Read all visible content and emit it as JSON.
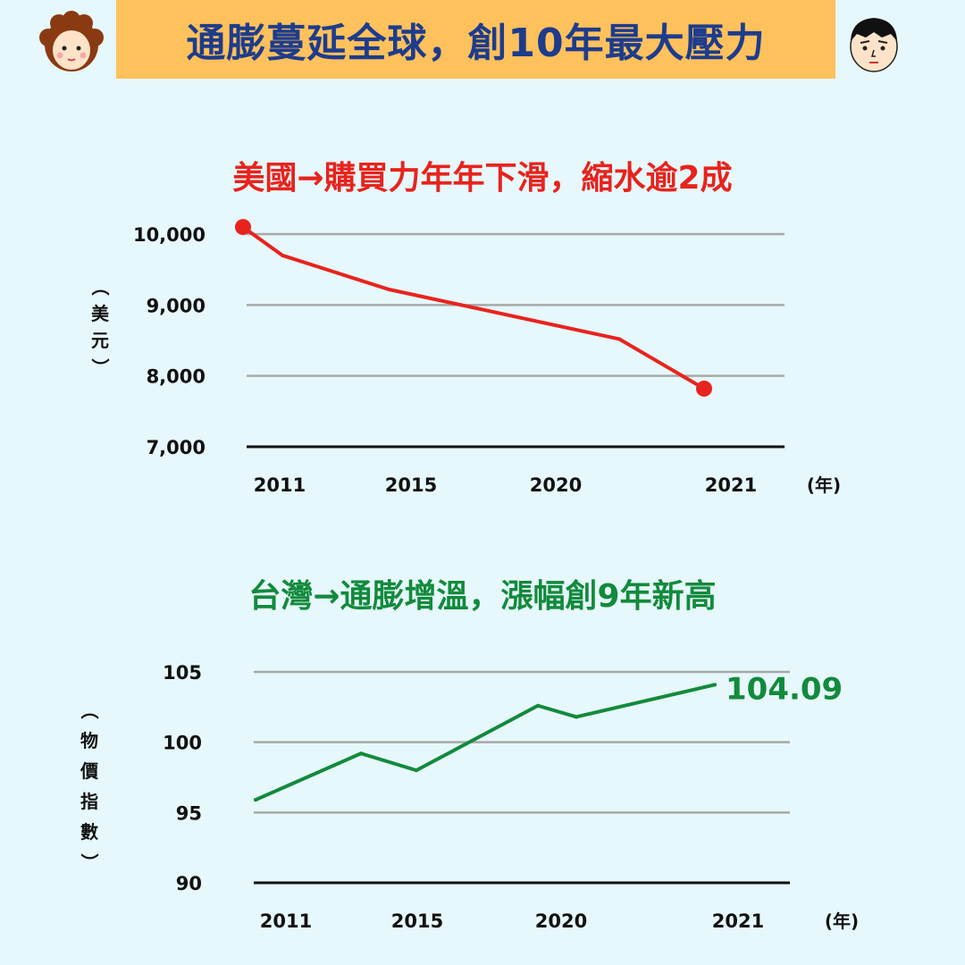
{
  "header": {
    "title": "通膨蔓延全球，創10年最大壓力"
  },
  "icons": {
    "left": "curly-haired-person-face-icon",
    "right": "worried-man-face-icon"
  },
  "colors": {
    "banner_bg": "#ffc15c",
    "banner_text": "#1d3c8c",
    "page_bg": "#e6f8fb",
    "us_red": "#e8231d",
    "tw_green": "#128a3c"
  },
  "chart_data": [
    {
      "type": "line",
      "title": "美國→購買力年年下滑，縮水逾2成",
      "ylabel": [
        "（",
        "美",
        "元",
        "）"
      ],
      "xunit": "(年)",
      "x_ticks": [
        "2011",
        "2015",
        "2020",
        "2021"
      ],
      "y_ticks": [
        "10,000",
        "9,000",
        "8,000",
        "7,000"
      ],
      "y_tick_values": [
        10000,
        9000,
        8000,
        7000
      ],
      "ylim": [
        7000,
        10000
      ],
      "grid": true,
      "series": [
        {
          "color": "#e8231d",
          "x": [
            2011,
            2012,
            2013,
            2015,
            2020,
            2021
          ],
          "y": [
            10100,
            9700,
            9450,
            9220,
            8520,
            7820
          ],
          "endpoint_markers": true
        }
      ]
    },
    {
      "type": "line",
      "title": "台灣→通膨增溫，漲幅創9年新高",
      "ylabel": [
        "（",
        "物",
        "價",
        "指",
        "數",
        "）"
      ],
      "xunit": "(年)",
      "x_ticks": [
        "2011",
        "2015",
        "2020",
        "2021"
      ],
      "y_ticks": [
        "105",
        "100",
        "95",
        "90"
      ],
      "y_tick_values": [
        105,
        100,
        95,
        90
      ],
      "ylim": [
        90,
        105
      ],
      "grid": true,
      "series": [
        {
          "color": "#128a3c",
          "x": [
            2011,
            2014,
            2015,
            2019,
            2020,
            2021
          ],
          "y": [
            95.9,
            99.2,
            98.0,
            102.6,
            101.8,
            104.09
          ],
          "end_label": "104.09"
        }
      ]
    }
  ]
}
